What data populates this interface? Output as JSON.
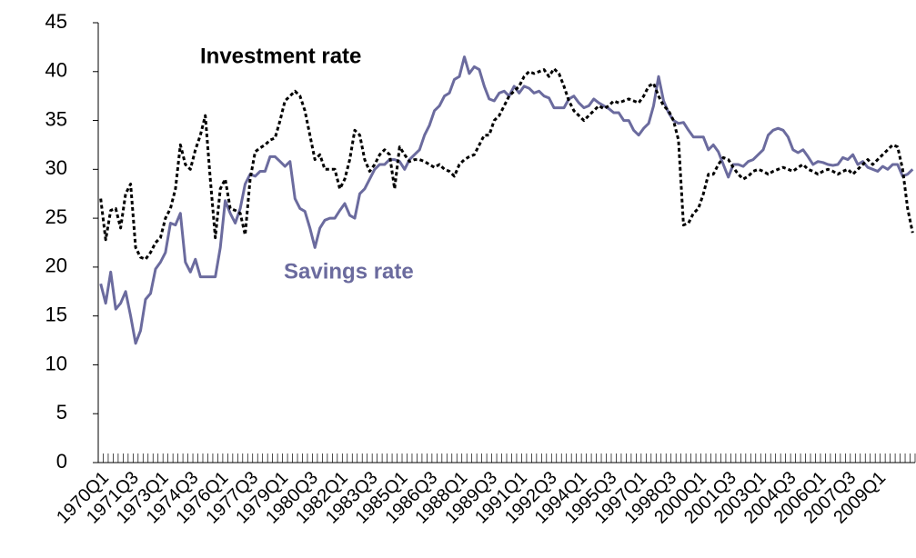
{
  "chart_data": {
    "type": "line",
    "annotations": [],
    "categories": [
      "1970Q1",
      null,
      null,
      null,
      null,
      null,
      "1971Q3",
      null,
      null,
      null,
      null,
      null,
      "1973Q1",
      null,
      null,
      null,
      null,
      null,
      "1974Q3",
      null,
      null,
      null,
      null,
      null,
      "1976Q1",
      null,
      null,
      null,
      null,
      null,
      "1977Q3",
      null,
      null,
      null,
      null,
      null,
      "1979Q1",
      null,
      null,
      null,
      null,
      null,
      "1980Q3",
      null,
      null,
      null,
      null,
      null,
      "1982Q1",
      null,
      null,
      null,
      null,
      null,
      "1983Q3",
      null,
      null,
      null,
      null,
      null,
      "1985Q1",
      null,
      null,
      null,
      null,
      null,
      "1986Q3",
      null,
      null,
      null,
      null,
      null,
      "1988Q1",
      null,
      null,
      null,
      null,
      null,
      "1989Q3",
      null,
      null,
      null,
      null,
      null,
      "1991Q1",
      null,
      null,
      null,
      null,
      null,
      "1992Q3",
      null,
      null,
      null,
      null,
      null,
      "1994Q1",
      null,
      null,
      null,
      null,
      null,
      "1995Q3",
      null,
      null,
      null,
      null,
      null,
      "1997Q1",
      null,
      null,
      null,
      null,
      null,
      "1998Q3",
      null,
      null,
      null,
      null,
      null,
      "2000Q1",
      null,
      null,
      null,
      null,
      null,
      "2001Q3",
      null,
      null,
      null,
      null,
      null,
      "2003Q1",
      null,
      null,
      null,
      null,
      null,
      "2004Q3",
      null,
      null,
      null,
      null,
      null,
      "2006Q1",
      null,
      null,
      null,
      null,
      null,
      "2007Q3",
      null,
      null,
      null,
      null,
      null,
      "2009Q1",
      null,
      null,
      null,
      null,
      null,
      null,
      null
    ],
    "series": [
      {
        "name": "Savings rate",
        "color": "#6b6b9e",
        "dashed": false,
        "values": [
          18.3,
          16.3,
          19.5,
          15.7,
          16.3,
          17.5,
          15,
          12.2,
          13.5,
          16.7,
          17.3,
          19.8,
          20.5,
          21.5,
          24.5,
          24.3,
          25.5,
          20.5,
          19.5,
          20.8,
          19,
          19,
          19,
          19,
          22,
          26.8,
          25.5,
          24.5,
          26,
          28.5,
          29.5,
          29.3,
          29.8,
          29.8,
          31.3,
          31.3,
          30.8,
          30.3,
          30.8,
          27,
          26,
          25.7,
          24,
          22,
          24,
          24.8,
          25,
          25,
          25.8,
          26.5,
          25.3,
          25,
          27.5,
          28,
          29,
          30,
          30.5,
          30.5,
          31,
          31,
          30.8,
          30,
          31,
          31.5,
          32,
          33.5,
          34.5,
          36,
          36.5,
          37.5,
          37.8,
          39.2,
          39.5,
          41.5,
          39.8,
          40.5,
          40.2,
          38.5,
          37.2,
          37,
          37.8,
          38,
          37.5,
          38.5,
          37.8,
          38.5,
          38.3,
          37.8,
          38,
          37.5,
          37.3,
          36.3,
          36.3,
          36.3,
          37.2,
          37.5,
          36.8,
          36.3,
          36.5,
          37.2,
          36.8,
          36.5,
          36.2,
          35.8,
          35.8,
          35,
          35,
          34,
          33.5,
          34.2,
          34.7,
          36.5,
          39.5,
          37,
          35.8,
          35,
          34.7,
          34.8,
          34,
          33.3,
          33.3,
          33.3,
          32,
          32.5,
          31.8,
          30.5,
          29.2,
          30.5,
          30.5,
          30.3,
          30.8,
          31,
          31.5,
          32,
          33.5,
          34,
          34.2,
          34,
          33.3,
          32,
          31.7,
          32,
          31.3,
          30.5,
          30.8,
          30.7,
          30.5,
          30.4,
          30.5,
          31.2,
          31,
          31.5,
          30.5,
          30.8,
          30.2,
          30,
          29.8,
          30.3,
          30,
          30.5,
          30.5,
          29.3,
          29.5,
          30
        ]
      },
      {
        "name": "Investment rate",
        "color": "#000000",
        "dashed": true,
        "values": [
          27,
          22.8,
          25.8,
          26,
          24,
          27.5,
          28.5,
          22,
          21,
          20.8,
          21.5,
          22.5,
          23,
          25,
          26,
          28,
          32.5,
          30.5,
          30,
          32,
          33.5,
          35.5,
          29,
          23,
          28,
          29,
          26,
          25.8,
          25.5,
          23.3,
          29,
          31.8,
          32.2,
          32.5,
          33,
          33.2,
          35,
          37,
          37.5,
          38,
          37.5,
          36,
          33.5,
          31,
          31.5,
          30,
          30,
          30,
          28,
          29,
          31,
          34,
          33.5,
          31,
          29.8,
          30.5,
          31.5,
          32,
          31.5,
          28,
          32.3,
          31.5,
          30.8,
          31,
          31,
          30.8,
          30.5,
          30.2,
          30.5,
          30,
          29.8,
          29.3,
          30.5,
          31,
          31.3,
          31.5,
          32.5,
          33.5,
          33.5,
          35,
          35.5,
          36.5,
          37.5,
          38,
          38.5,
          39.5,
          40,
          39.8,
          40,
          40.2,
          39.5,
          40.3,
          39.8,
          38.5,
          37,
          36,
          35.5,
          35,
          35.5,
          36,
          36.5,
          36.2,
          36.5,
          37,
          36.8,
          37,
          37.2,
          37,
          36.8,
          37.5,
          38.5,
          38.8,
          37.5,
          36.5,
          36,
          35,
          33,
          24.3,
          24.5,
          25.5,
          26,
          27.5,
          29.5,
          29.5,
          30.5,
          31.2,
          31,
          30.2,
          29.5,
          29,
          29.3,
          29.8,
          30,
          29.8,
          29.5,
          29.8,
          30,
          30.2,
          30,
          29.8,
          30.2,
          30.5,
          30,
          29.8,
          29.5,
          29.8,
          30,
          29.8,
          29.5,
          29.8,
          30,
          29.5,
          30,
          30.5,
          31,
          30.5,
          31,
          31.5,
          32,
          32.5,
          32.3,
          30,
          26,
          23.5
        ]
      }
    ],
    "ylim": [
      0,
      45
    ],
    "yticks": [
      0,
      5,
      10,
      15,
      20,
      25,
      30,
      35,
      40,
      45
    ],
    "grid": false
  }
}
